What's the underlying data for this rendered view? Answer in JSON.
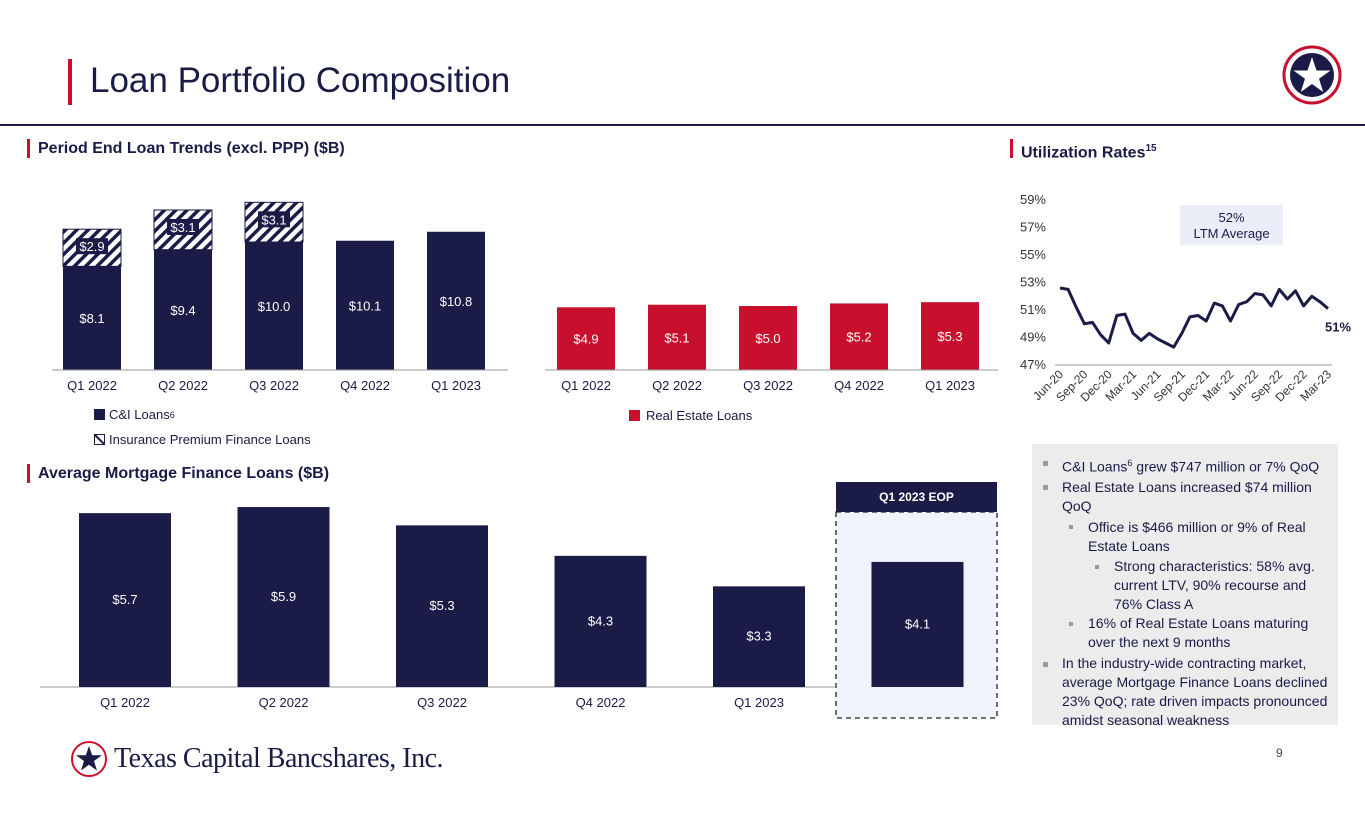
{
  "page": {
    "title": "Loan Portfolio Composition",
    "page_number": "9",
    "company": "Texas Capital Bancshares, Inc."
  },
  "colors": {
    "navy": "#1a1b47",
    "red": "#c8102e",
    "light_blue": "#eef3fc",
    "gray_panel": "#ececec"
  },
  "sections": {
    "loan_trends": "Period End Loan Trends (excl. PPP) ($B)",
    "utilization": "Utilization Rates",
    "utilization_footnote": "15",
    "mortgage": "Average Mortgage Finance Loans ($B)"
  },
  "legends": {
    "ci": "C&I Loans",
    "ci_footnote": "6",
    "ipf": "Insurance Premium Finance Loans",
    "re": "Real Estate Loans"
  },
  "chart_data": [
    {
      "id": "ci_loans",
      "type": "bar",
      "stacked": true,
      "title": "Period End Loan Trends (excl. PPP) ($B)",
      "categories": [
        "Q1 2022",
        "Q2 2022",
        "Q3 2022",
        "Q4 2022",
        "Q1 2023"
      ],
      "series": [
        {
          "name": "C&I Loans",
          "values": [
            8.1,
            9.4,
            10.0,
            10.1,
            10.8
          ],
          "labels": [
            "$8.1",
            "$9.4",
            "$10.0",
            "$10.1",
            "$10.8"
          ]
        },
        {
          "name": "Insurance Premium Finance Loans",
          "values": [
            2.9,
            3.1,
            3.1,
            null,
            null
          ],
          "labels": [
            "$2.9",
            "$3.1",
            "$3.1",
            "",
            ""
          ]
        }
      ]
    },
    {
      "id": "re_loans",
      "type": "bar",
      "categories": [
        "Q1 2022",
        "Q2 2022",
        "Q3 2022",
        "Q4 2022",
        "Q1 2023"
      ],
      "series": [
        {
          "name": "Real Estate Loans",
          "values": [
            4.9,
            5.1,
            5.0,
            5.2,
            5.3
          ],
          "labels": [
            "$4.9",
            "$5.1",
            "$5.0",
            "$5.2",
            "$5.3"
          ]
        }
      ]
    },
    {
      "id": "mortgage",
      "type": "bar",
      "title": "Average Mortgage Finance Loans ($B)",
      "categories": [
        "Q1 2022",
        "Q2 2022",
        "Q3 2022",
        "Q4 2022",
        "Q1 2023",
        "Q1 2023 EOP"
      ],
      "series": [
        {
          "name": "Average Mortgage Finance Loans",
          "values": [
            5.7,
            5.9,
            5.3,
            4.3,
            3.3,
            4.1
          ],
          "labels": [
            "$5.7",
            "$5.9",
            "$5.3",
            "$4.3",
            "$3.3",
            "$4.1"
          ]
        }
      ],
      "highlight_label": "Q1 2023 EOP"
    },
    {
      "id": "utilization",
      "type": "line",
      "title": "Utilization Rates",
      "ylim": [
        47,
        59
      ],
      "yticks": [
        "47%",
        "49%",
        "51%",
        "53%",
        "55%",
        "57%",
        "59%"
      ],
      "xticks": [
        "Jun-20",
        "Sep-20",
        "Dec-20",
        "Mar-21",
        "Jun-21",
        "Sep-21",
        "Dec-21",
        "Mar-22",
        "Jun-22",
        "Sep-22",
        "Dec-22",
        "Mar-23"
      ],
      "series": [
        {
          "name": "Utilization Rate",
          "values": [
            52.6,
            52.5,
            51.2,
            50.0,
            50.1,
            49.2,
            48.6,
            50.6,
            50.7,
            49.3,
            48.8,
            49.3,
            48.9,
            48.6,
            48.3,
            49.3,
            50.5,
            50.6,
            50.2,
            51.5,
            51.3,
            50.2,
            51.4,
            51.6,
            52.2,
            52.1,
            51.3,
            52.5,
            51.8,
            52.4,
            51.3,
            52.0,
            51.6,
            51.1
          ]
        }
      ],
      "annotation": {
        "line1": "52%",
        "line2": "LTM Average"
      },
      "end_label": "51%"
    }
  ],
  "bullets": {
    "b1_pre": "C&I Loans",
    "b1_sup": "6",
    "b1_post": " grew $747 million or 7% QoQ",
    "b2": "Real Estate Loans increased $74 million QoQ",
    "b2a": "Office is $466 million or 9% of Real Estate Loans",
    "b2a1": "Strong characteristics: 58% avg. current LTV, 90% recourse and 76% Class A",
    "b2b": "16% of Real Estate Loans maturing over the next 9 months",
    "b3": "In the industry-wide contracting market, average Mortgage Finance Loans declined 23% QoQ; rate driven impacts pronounced amidst seasonal weakness"
  }
}
